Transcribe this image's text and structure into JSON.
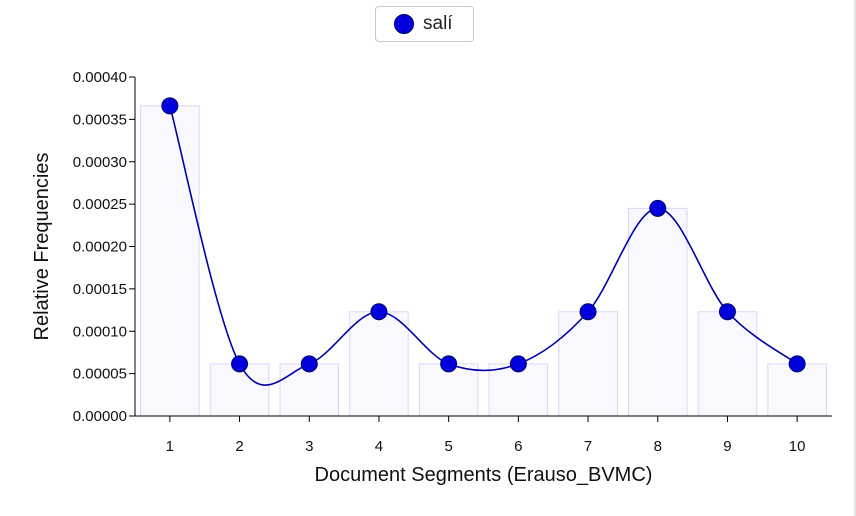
{
  "legend": {
    "series_label": "salí",
    "marker_color": "#0000dd"
  },
  "chart_data": {
    "type": "bar",
    "overlay": "line",
    "categories": [
      "1",
      "2",
      "3",
      "4",
      "5",
      "6",
      "7",
      "8",
      "9",
      "10"
    ],
    "series": [
      {
        "name": "salí",
        "values": [
          0.000366,
          6.15e-05,
          6.15e-05,
          0.000123,
          6.15e-05,
          6.15e-05,
          0.000123,
          0.000245,
          0.000123,
          6.15e-05
        ]
      }
    ],
    "xlabel": "Document Segments (Erauso_BVMC)",
    "ylabel": "Relative Frequencies",
    "ylim": [
      0,
      0.0004
    ],
    "yticks": [
      "0.00000",
      "0.00005",
      "0.00010",
      "0.00015",
      "0.00020",
      "0.00025",
      "0.00030",
      "0.00035",
      "0.00040"
    ],
    "grid": false,
    "legend_position": "top-center",
    "colors": {
      "line": "#0000aa",
      "point": "#0000dd",
      "bar_fill": "#f8f8fe",
      "bar_stroke": "#d8d8f4"
    }
  }
}
